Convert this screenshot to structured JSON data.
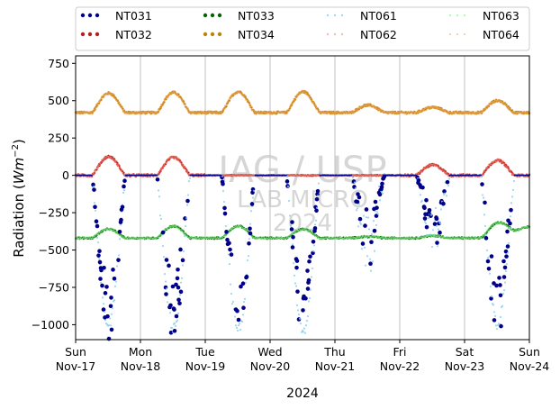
{
  "chart_data": {
    "type": "scatter",
    "ylabel_main": "Radiation (",
    "ylabel_unit": "Wm",
    "ylabel_exp": "−2",
    "ylabel_close": ")",
    "xlabel": "2024",
    "ylim": [
      -1100,
      800
    ],
    "yticks": [
      -1000,
      -750,
      -500,
      -250,
      0,
      250,
      500,
      750
    ],
    "ytick_labels": [
      "−1000",
      "−750",
      "−500",
      "−250",
      "0",
      "250",
      "500",
      "750"
    ],
    "xlim_days": [
      0,
      7
    ],
    "xticks": [
      {
        "day": 0,
        "line1": "Sun",
        "line2": "Nov-17"
      },
      {
        "day": 1,
        "line1": "Mon",
        "line2": "Nov-18"
      },
      {
        "day": 2,
        "line1": "Tue",
        "line2": "Nov-19"
      },
      {
        "day": 3,
        "line1": "Wed",
        "line2": "Nov-20"
      },
      {
        "day": 4,
        "line1": "Thu",
        "line2": "Nov-21"
      },
      {
        "day": 5,
        "line1": "Fri",
        "line2": "Nov-22"
      },
      {
        "day": 6,
        "line1": "Sat",
        "line2": "Nov-23"
      },
      {
        "day": 7,
        "line1": "Sun",
        "line2": "Nov-24"
      }
    ],
    "grid": "vertical",
    "legend_position": "top-outside",
    "watermark": [
      "IAG / USP",
      "LAB MICRO",
      "2024"
    ],
    "legend": [
      {
        "name": "NT031",
        "color": "#00008b",
        "style": "dots"
      },
      {
        "name": "NT032",
        "color": "#b22222",
        "style": "dots"
      },
      {
        "name": "NT033",
        "color": "#006400",
        "style": "dots"
      },
      {
        "name": "NT034",
        "color": "#b8860b",
        "style": "dots"
      },
      {
        "name": "NT061",
        "color": "#87ceeb",
        "style": "light-dots"
      },
      {
        "name": "NT062",
        "color": "#f4a6a6",
        "style": "light-dots"
      },
      {
        "name": "NT063",
        "color": "#98fb98",
        "style": "light-dots"
      },
      {
        "name": "NT064",
        "color": "#f5c6a0",
        "style": "light-dots"
      }
    ],
    "series": [
      {
        "name": "NT034",
        "color": "#b8860b",
        "alt_color": "#f4a460",
        "base": 420,
        "daily_peak": [
          550,
          555,
          560,
          560,
          470,
          455,
          500
        ]
      },
      {
        "name": "NT032",
        "color": "#b22222",
        "alt_color": "#fa8072",
        "base": 0,
        "daily_peak": [
          125,
          120,
          0,
          0,
          0,
          70,
          100
        ]
      },
      {
        "name": "NT033",
        "color": "#006400",
        "alt_color": "#90ee90",
        "base": -420,
        "daily_peak": [
          -360,
          -340,
          -340,
          -360,
          -410,
          -405,
          -340
        ]
      },
      {
        "name": "NT031",
        "color": "#00008b",
        "alt_color": "#87ceeb",
        "base": 0,
        "daily_trough": [
          -1000,
          -1020,
          -1030,
          -1040,
          -620,
          -480,
          -1000
        ]
      }
    ]
  }
}
